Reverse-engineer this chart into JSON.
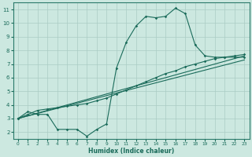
{
  "title": "",
  "xlabel": "Humidex (Indice chaleur)",
  "ylabel": "",
  "bg_color": "#cce8e0",
  "grid_color": "#aaccC4",
  "line_color": "#1a6b5a",
  "spine_color": "#2a7a6a",
  "xlim": [
    -0.5,
    23.5
  ],
  "ylim": [
    1.5,
    11.5
  ],
  "xticks": [
    0,
    1,
    2,
    3,
    4,
    5,
    6,
    7,
    8,
    9,
    10,
    11,
    12,
    13,
    14,
    15,
    16,
    17,
    18,
    19,
    20,
    21,
    22,
    23
  ],
  "yticks": [
    2,
    3,
    4,
    5,
    6,
    7,
    8,
    9,
    10,
    11
  ],
  "line1_x": [
    0,
    1,
    2,
    3,
    4,
    5,
    6,
    7,
    8,
    9,
    10,
    11,
    12,
    13,
    14,
    15,
    16,
    17,
    18,
    19,
    20,
    21,
    22,
    23
  ],
  "line1_y": [
    3.0,
    3.5,
    3.3,
    3.3,
    2.2,
    2.2,
    2.2,
    1.7,
    2.2,
    2.6,
    6.7,
    8.6,
    9.8,
    10.5,
    10.4,
    10.5,
    11.1,
    10.7,
    8.4,
    7.6,
    7.5,
    7.5,
    7.5,
    7.5
  ],
  "line2_x": [
    0,
    1,
    2,
    3,
    4,
    5,
    6,
    7,
    8,
    9,
    10,
    11,
    12,
    13,
    14,
    15,
    16,
    17,
    18,
    19,
    20,
    21,
    22,
    23
  ],
  "line2_y": [
    3.0,
    3.3,
    3.6,
    3.7,
    3.8,
    3.9,
    4.0,
    4.1,
    4.3,
    4.5,
    4.8,
    5.1,
    5.4,
    5.7,
    6.0,
    6.3,
    6.5,
    6.8,
    7.0,
    7.2,
    7.4,
    7.5,
    7.6,
    7.7
  ],
  "line3_x": [
    0,
    23
  ],
  "line3_y": [
    3.0,
    7.6
  ],
  "line4_x": [
    0,
    23
  ],
  "line4_y": [
    3.0,
    7.3
  ]
}
